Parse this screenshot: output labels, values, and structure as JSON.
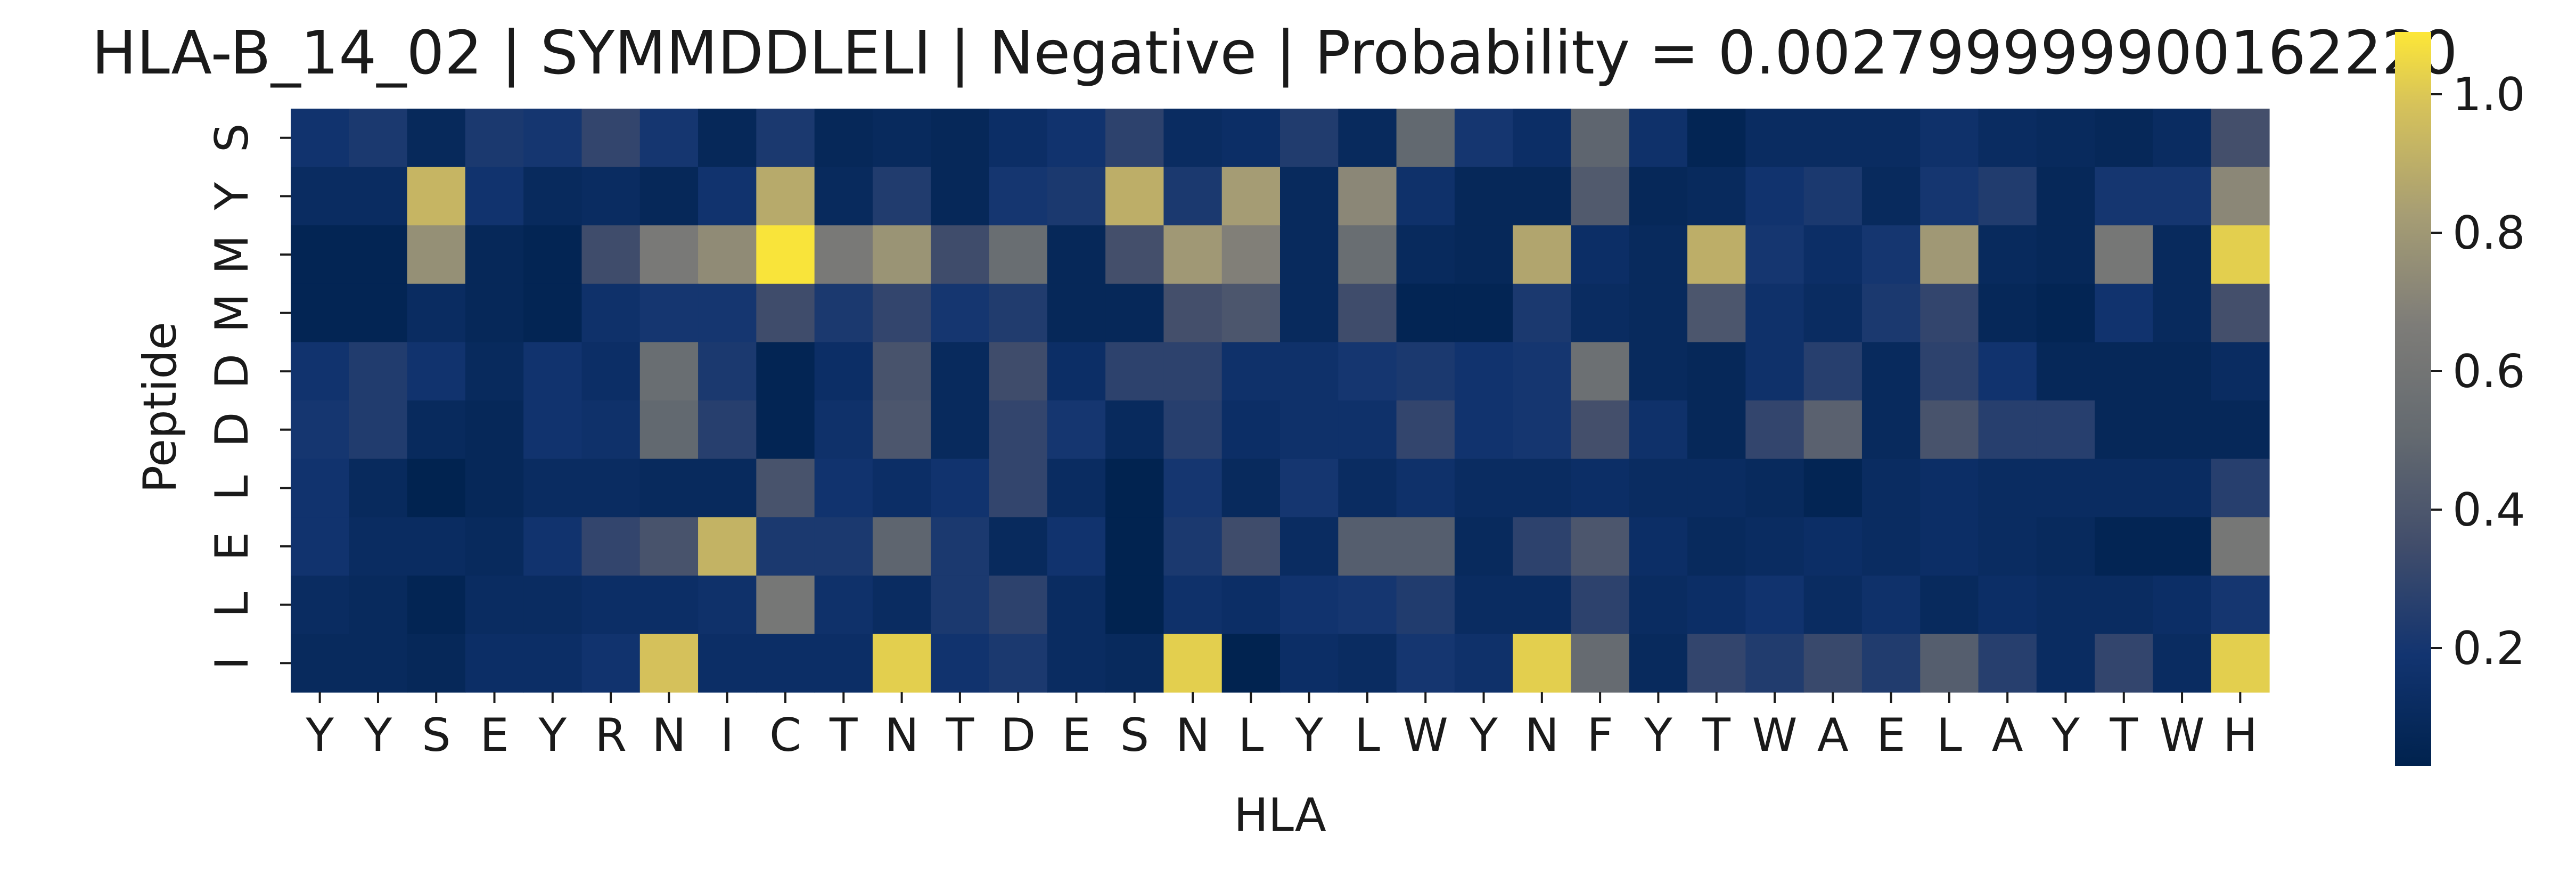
{
  "chart_data": {
    "type": "heatmap",
    "title": "HLA-B_14_02 | SYMMDDLELI | Negative | Probability = 0.002799999900162220",
    "xlabel": "HLA",
    "ylabel": "Peptide",
    "x_categories": [
      "Y",
      "Y",
      "S",
      "E",
      "Y",
      "R",
      "N",
      "I",
      "C",
      "T",
      "N",
      "T",
      "D",
      "E",
      "S",
      "N",
      "L",
      "Y",
      "L",
      "W",
      "Y",
      "N",
      "F",
      "Y",
      "T",
      "W",
      "A",
      "E",
      "L",
      "A",
      "Y",
      "T",
      "W",
      "H"
    ],
    "y_categories": [
      "S",
      "Y",
      "M",
      "M",
      "D",
      "D",
      "L",
      "E",
      "L",
      "I"
    ],
    "values": [
      [
        0.18,
        0.22,
        0.09,
        0.22,
        0.2,
        0.3,
        0.2,
        0.08,
        0.22,
        0.08,
        0.1,
        0.08,
        0.14,
        0.18,
        0.28,
        0.12,
        0.14,
        0.24,
        0.1,
        0.5,
        0.2,
        0.14,
        0.48,
        0.16,
        0.06,
        0.12,
        0.12,
        0.12,
        0.16,
        0.12,
        0.1,
        0.08,
        0.12,
        0.36
      ],
      [
        0.12,
        0.12,
        0.93,
        0.18,
        0.1,
        0.12,
        0.08,
        0.18,
        0.88,
        0.1,
        0.24,
        0.08,
        0.2,
        0.22,
        0.9,
        0.22,
        0.82,
        0.1,
        0.72,
        0.16,
        0.08,
        0.08,
        0.42,
        0.08,
        0.1,
        0.18,
        0.22,
        0.1,
        0.2,
        0.24,
        0.08,
        0.2,
        0.2,
        0.72
      ],
      [
        0.06,
        0.06,
        0.76,
        0.08,
        0.06,
        0.34,
        0.64,
        0.74,
        1.08,
        0.64,
        0.78,
        0.34,
        0.54,
        0.08,
        0.36,
        0.8,
        0.68,
        0.1,
        0.54,
        0.1,
        0.08,
        0.86,
        0.14,
        0.1,
        0.9,
        0.2,
        0.14,
        0.2,
        0.8,
        0.1,
        0.08,
        0.62,
        0.1,
        1.02
      ],
      [
        0.06,
        0.06,
        0.12,
        0.08,
        0.06,
        0.16,
        0.2,
        0.2,
        0.34,
        0.22,
        0.3,
        0.2,
        0.24,
        0.08,
        0.08,
        0.36,
        0.4,
        0.1,
        0.34,
        0.06,
        0.06,
        0.22,
        0.12,
        0.1,
        0.4,
        0.16,
        0.12,
        0.22,
        0.3,
        0.08,
        0.06,
        0.18,
        0.1,
        0.36
      ],
      [
        0.18,
        0.24,
        0.18,
        0.1,
        0.18,
        0.14,
        0.54,
        0.22,
        0.06,
        0.14,
        0.38,
        0.1,
        0.34,
        0.14,
        0.28,
        0.28,
        0.16,
        0.16,
        0.2,
        0.22,
        0.18,
        0.2,
        0.56,
        0.1,
        0.08,
        0.16,
        0.26,
        0.1,
        0.28,
        0.18,
        0.08,
        0.08,
        0.08,
        0.12
      ],
      [
        0.2,
        0.24,
        0.1,
        0.08,
        0.18,
        0.16,
        0.5,
        0.26,
        0.06,
        0.16,
        0.4,
        0.1,
        0.3,
        0.2,
        0.1,
        0.26,
        0.14,
        0.16,
        0.16,
        0.3,
        0.18,
        0.2,
        0.36,
        0.16,
        0.08,
        0.3,
        0.46,
        0.1,
        0.38,
        0.26,
        0.26,
        0.08,
        0.08,
        0.08
      ],
      [
        0.18,
        0.1,
        0.04,
        0.08,
        0.12,
        0.12,
        0.1,
        0.1,
        0.38,
        0.18,
        0.14,
        0.18,
        0.3,
        0.12,
        0.04,
        0.2,
        0.1,
        0.2,
        0.12,
        0.16,
        0.12,
        0.12,
        0.14,
        0.12,
        0.12,
        0.1,
        0.06,
        0.12,
        0.14,
        0.12,
        0.12,
        0.12,
        0.12,
        0.26
      ],
      [
        0.18,
        0.12,
        0.12,
        0.1,
        0.18,
        0.3,
        0.38,
        0.92,
        0.22,
        0.22,
        0.48,
        0.22,
        0.1,
        0.18,
        0.04,
        0.22,
        0.34,
        0.12,
        0.44,
        0.44,
        0.1,
        0.28,
        0.4,
        0.14,
        0.1,
        0.12,
        0.14,
        0.12,
        0.14,
        0.12,
        0.1,
        0.06,
        0.06,
        0.62
      ],
      [
        0.12,
        0.1,
        0.06,
        0.12,
        0.12,
        0.14,
        0.14,
        0.16,
        0.62,
        0.16,
        0.12,
        0.22,
        0.28,
        0.12,
        0.04,
        0.16,
        0.14,
        0.18,
        0.2,
        0.24,
        0.12,
        0.12,
        0.28,
        0.12,
        0.14,
        0.18,
        0.12,
        0.16,
        0.1,
        0.14,
        0.12,
        0.12,
        0.14,
        0.2
      ],
      [
        0.1,
        0.1,
        0.08,
        0.14,
        0.14,
        0.18,
        0.98,
        0.14,
        0.14,
        0.14,
        1.02,
        0.18,
        0.22,
        0.12,
        0.1,
        1.02,
        0.04,
        0.14,
        0.12,
        0.2,
        0.16,
        1.02,
        0.52,
        0.1,
        0.3,
        0.24,
        0.32,
        0.24,
        0.44,
        0.26,
        0.12,
        0.3,
        0.12,
        1.02
      ]
    ],
    "colormap": "cividis",
    "colorbar": {
      "min": 0.03,
      "max": 1.09,
      "ticks": [
        0.2,
        0.4,
        0.6,
        0.8,
        1.0
      ],
      "tick_labels": [
        "0.2",
        "0.4",
        "0.6",
        "0.8",
        "1.0"
      ]
    },
    "grid": false,
    "legend": "colorbar-right"
  }
}
